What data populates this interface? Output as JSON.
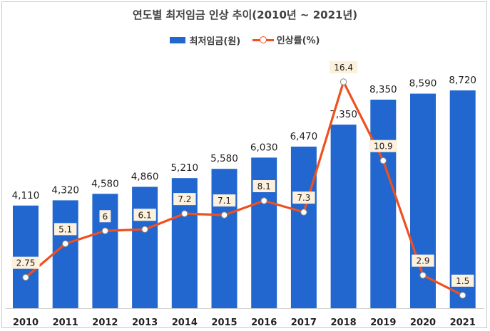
{
  "chart_data": {
    "type": "bar+line",
    "title": "연도별 최저임금 인상 추이(2010년 ~ 2021년)",
    "categories": [
      "2010",
      "2011",
      "2012",
      "2013",
      "2014",
      "2015",
      "2016",
      "2017",
      "2018",
      "2019",
      "2020",
      "2021"
    ],
    "series": [
      {
        "name": "최저임금(원)",
        "kind": "bar",
        "values": [
          4110,
          4320,
          4580,
          4860,
          5210,
          5580,
          6030,
          6470,
          7350,
          8350,
          8590,
          8720
        ],
        "labels": [
          "4,110",
          "4,320",
          "4,580",
          "4,860",
          "5,210",
          "5,580",
          "6,030",
          "6,470",
          "7,350",
          "8,350",
          "8,590",
          "8,720"
        ],
        "color": "#2267cf"
      },
      {
        "name": "인상률(%)",
        "kind": "line",
        "values": [
          2.75,
          5.1,
          6,
          6.1,
          7.2,
          7.1,
          8.1,
          7.3,
          16.4,
          10.9,
          2.9,
          1.5
        ],
        "labels": [
          "2.75",
          "5.1",
          "6",
          "6.1",
          "7.2",
          "7.1",
          "8.1",
          "7.3",
          "16.4",
          "10.9",
          "2.9",
          "1.5"
        ],
        "color": "#f0501e"
      }
    ],
    "bar_ylim": [
      0,
      10000
    ],
    "line_ylim": [
      0,
      18
    ],
    "legend_position": "top-center",
    "grid": false
  },
  "colors": {
    "bar": "#2267cf",
    "line": "#f0501e",
    "label_box": "#fdf0dc"
  }
}
